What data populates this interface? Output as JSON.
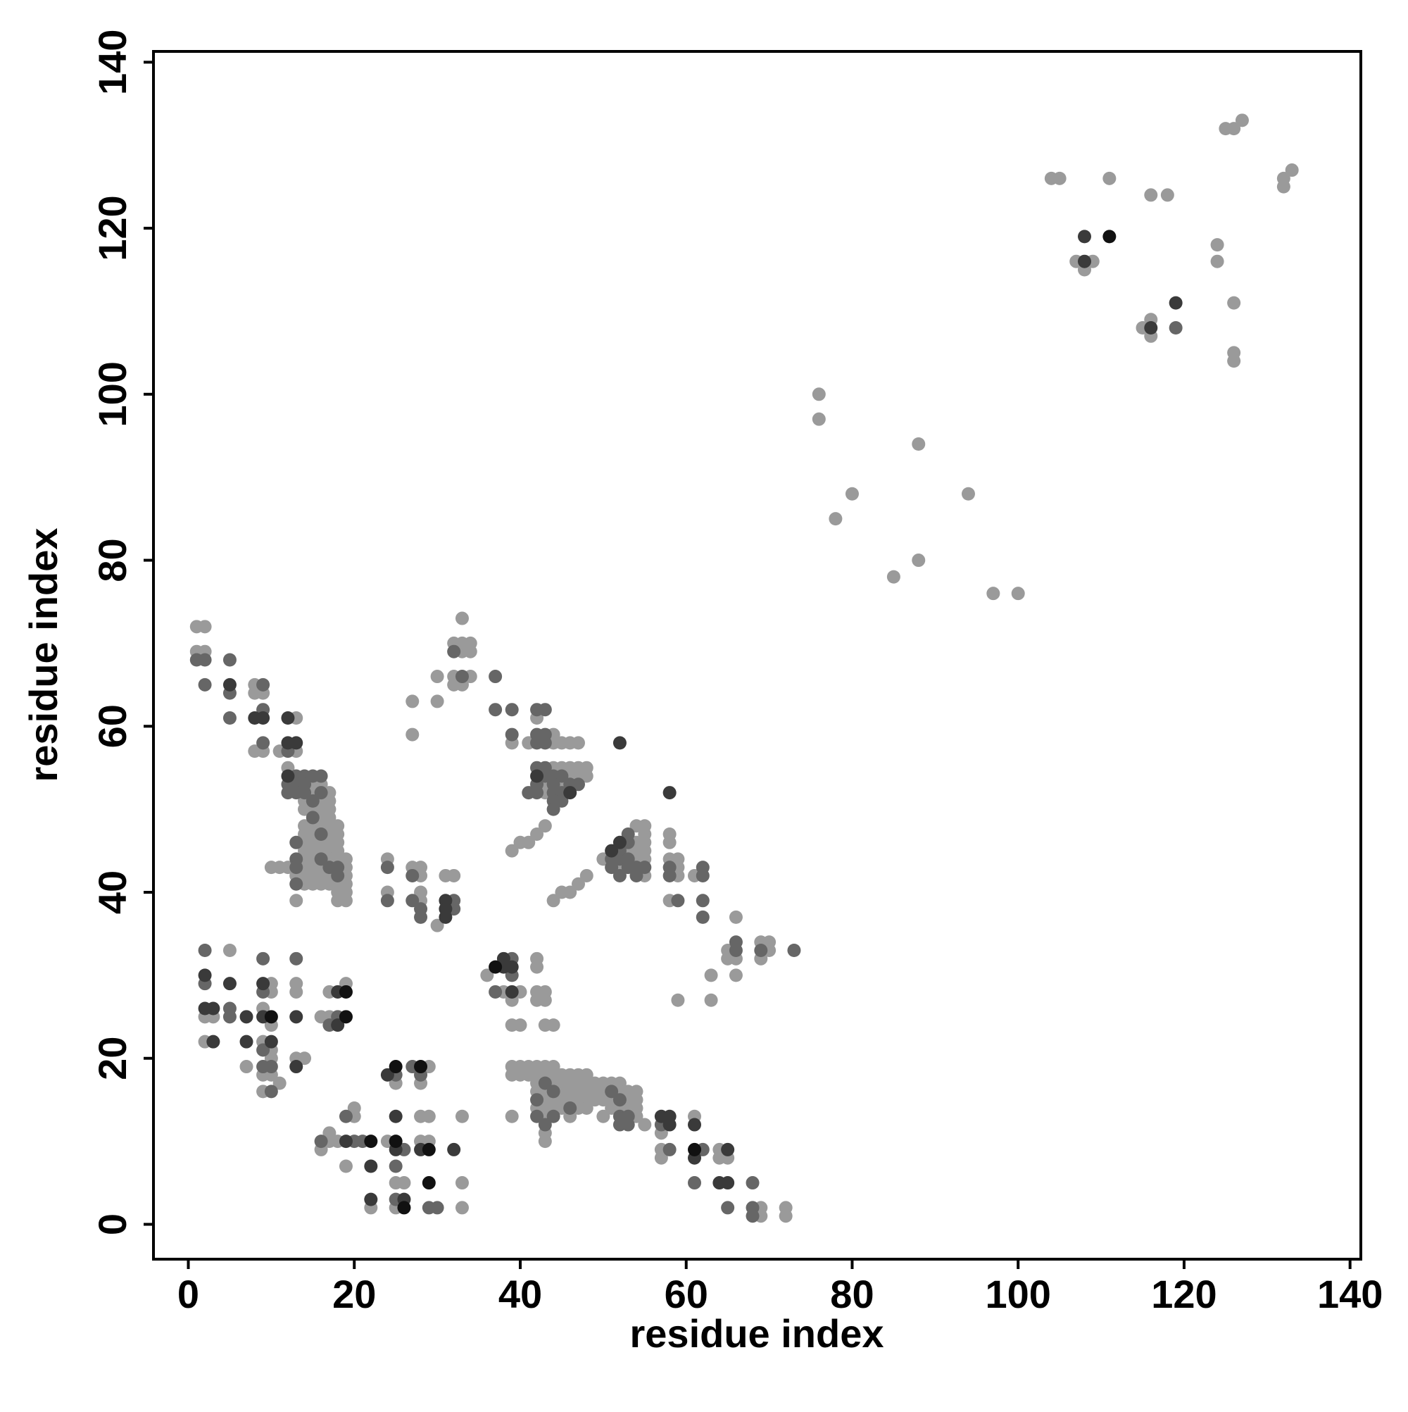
{
  "chart_data": {
    "type": "scatter",
    "xlabel": "residue index",
    "ylabel": "residue index",
    "xlim": [
      -4.2,
      141.3
    ],
    "ylim": [
      -4.2,
      141.3
    ],
    "xticks": [
      0,
      20,
      40,
      60,
      80,
      100,
      120,
      140
    ],
    "yticks": [
      0,
      20,
      40,
      60,
      80,
      100,
      120,
      140
    ],
    "series": [
      {
        "color": "#9a9a9a",
        "x": [
          104,
          105,
          111,
          116,
          118,
          127,
          126,
          125,
          133,
          132,
          132,
          107,
          109,
          108,
          124,
          124,
          126,
          115,
          116,
          116,
          126,
          126,
          76,
          76,
          88,
          80,
          94,
          78,
          88,
          85,
          97,
          100,
          1,
          2,
          1,
          2,
          8,
          8,
          9,
          8,
          9,
          13,
          11,
          13,
          12,
          15,
          16,
          15,
          17,
          14,
          16,
          17,
          14,
          15,
          16,
          17,
          16,
          17,
          14,
          15,
          16,
          17,
          18,
          14,
          15,
          17,
          18,
          14,
          15,
          16,
          17,
          18,
          14,
          15,
          16,
          17,
          18,
          14,
          15,
          17,
          18,
          19,
          10,
          11,
          12,
          14,
          15,
          16,
          19,
          13,
          14,
          15,
          16,
          17,
          19,
          14,
          15,
          16,
          17,
          18,
          19,
          18,
          19,
          13,
          18,
          19,
          33,
          32,
          33,
          34,
          33,
          34,
          30,
          32,
          34,
          32,
          33,
          27,
          30,
          27,
          24,
          27,
          28,
          28,
          31,
          32,
          24,
          28,
          28,
          30,
          42,
          39,
          41,
          44,
          44,
          45,
          46,
          47,
          44,
          45,
          46,
          47,
          48,
          46,
          47,
          48,
          43,
          45,
          43,
          43,
          42,
          41,
          40,
          39,
          48,
          47,
          46,
          45,
          44,
          55,
          54,
          55,
          54,
          55,
          53,
          54,
          55,
          50,
          54,
          55,
          52,
          55,
          58,
          58,
          58,
          59,
          59,
          59,
          61,
          58,
          66,
          65,
          65,
          66,
          69,
          70,
          70,
          69,
          63,
          66,
          59,
          63,
          5,
          10,
          13,
          19,
          10,
          13,
          17,
          9,
          16,
          17,
          2,
          3,
          10,
          2,
          9,
          10,
          10,
          13,
          14,
          7,
          9,
          10,
          11,
          9,
          29,
          25,
          28,
          20,
          20,
          28,
          29,
          33,
          17,
          17,
          18,
          24,
          28,
          29,
          16,
          19,
          25,
          26,
          33,
          22,
          25,
          33,
          42,
          42,
          36,
          38,
          40,
          42,
          43,
          39,
          42,
          43,
          39,
          40,
          43,
          44,
          39,
          40,
          41,
          42,
          43,
          44,
          39,
          40,
          41,
          42,
          43,
          44,
          45,
          46,
          47,
          48,
          42,
          44,
          45,
          46,
          47,
          48,
          49,
          50,
          51,
          52,
          42,
          43,
          45,
          46,
          47,
          48,
          49,
          50,
          52,
          53,
          54,
          43,
          44,
          45,
          46,
          47,
          48,
          49,
          50,
          51,
          53,
          54,
          42,
          43,
          44,
          45,
          47,
          48,
          51,
          52,
          53,
          54,
          39,
          43,
          46,
          50,
          54,
          55,
          43,
          43,
          61,
          57,
          57,
          57,
          64,
          64,
          65,
          69,
          72,
          69,
          72
        ],
        "values": [
          126,
          126,
          126,
          124,
          124,
          133,
          132,
          132,
          127,
          126,
          125,
          116,
          116,
          115,
          118,
          116,
          111,
          108,
          109,
          107,
          105,
          104,
          100,
          97,
          94,
          88,
          88,
          85,
          80,
          78,
          76,
          76,
          72,
          72,
          69,
          69,
          65,
          64,
          64,
          57,
          57,
          61,
          57,
          57,
          55,
          53,
          53,
          52,
          52,
          51,
          51,
          51,
          50,
          50,
          50,
          50,
          49,
          49,
          48,
          48,
          48,
          48,
          48,
          47,
          47,
          47,
          47,
          46,
          46,
          46,
          46,
          46,
          45,
          45,
          45,
          45,
          45,
          44,
          44,
          44,
          44,
          44,
          43,
          43,
          43,
          43,
          43,
          43,
          43,
          42,
          42,
          42,
          42,
          42,
          42,
          41,
          41,
          41,
          41,
          41,
          41,
          40,
          40,
          39,
          39,
          39,
          73,
          70,
          70,
          70,
          69,
          69,
          66,
          66,
          66,
          65,
          65,
          63,
          63,
          59,
          44,
          43,
          43,
          42,
          42,
          42,
          40,
          39,
          40,
          36,
          61,
          58,
          58,
          59,
          58,
          58,
          58,
          58,
          55,
          55,
          55,
          55,
          55,
          54,
          54,
          54,
          53,
          53,
          52,
          48,
          47,
          46,
          46,
          45,
          42,
          41,
          40,
          40,
          39,
          48,
          48,
          47,
          46,
          46,
          45,
          45,
          45,
          44,
          44,
          44,
          43,
          42,
          47,
          46,
          44,
          44,
          43,
          42,
          42,
          39,
          37,
          33,
          32,
          32,
          34,
          34,
          33,
          32,
          30,
          30,
          27,
          27,
          33,
          29,
          29,
          29,
          28,
          28,
          28,
          26,
          25,
          25,
          25,
          25,
          24,
          22,
          22,
          21,
          20,
          20,
          20,
          19,
          18,
          18,
          17,
          16,
          19,
          17,
          17,
          14,
          13,
          13,
          13,
          13,
          11,
          10,
          10,
          10,
          10,
          10,
          9,
          7,
          5,
          5,
          5,
          2,
          2,
          2,
          32,
          31,
          30,
          28,
          28,
          28,
          28,
          27,
          27,
          27,
          24,
          24,
          24,
          24,
          19,
          19,
          19,
          19,
          19,
          19,
          18,
          18,
          18,
          18,
          18,
          18,
          18,
          18,
          18,
          18,
          17,
          17,
          17,
          17,
          17,
          17,
          17,
          17,
          17,
          17,
          16,
          16,
          16,
          16,
          16,
          16,
          16,
          16,
          16,
          16,
          16,
          15,
          15,
          15,
          15,
          15,
          15,
          15,
          15,
          15,
          15,
          15,
          14,
          14,
          14,
          14,
          14,
          14,
          14,
          14,
          14,
          14,
          13,
          13,
          13,
          13,
          13,
          12,
          11,
          10,
          13,
          11,
          9,
          8,
          9,
          8,
          8,
          2,
          2,
          1,
          1
        ]
      },
      {
        "color": "#666666",
        "x": [
          119,
          1,
          2,
          2,
          5,
          5,
          5,
          9,
          9,
          9,
          12,
          13,
          14,
          15,
          16,
          12,
          13,
          14,
          12,
          13,
          14,
          16,
          15,
          15,
          16,
          13,
          13,
          16,
          13,
          17,
          18,
          18,
          13,
          32,
          33,
          24,
          27,
          24,
          27,
          28,
          28,
          32,
          32,
          37,
          37,
          39,
          42,
          43,
          39,
          42,
          43,
          42,
          43,
          42,
          43,
          43,
          44,
          45,
          42,
          44,
          46,
          47,
          41,
          42,
          44,
          45,
          44,
          45,
          44,
          53,
          53,
          52,
          51,
          52,
          53,
          51,
          53,
          54,
          55,
          52,
          54,
          58,
          58,
          62,
          62,
          59,
          62,
          62,
          66,
          66,
          69,
          73,
          2,
          9,
          13,
          2,
          9,
          5,
          18,
          5,
          17,
          9,
          9,
          10,
          10,
          27,
          25,
          28,
          19,
          16,
          20,
          21,
          26,
          25,
          25,
          29,
          30,
          39,
          39,
          37,
          43,
          44,
          51,
          42,
          52,
          46,
          42,
          44,
          52,
          53,
          43,
          52,
          53,
          57,
          58,
          62,
          61,
          68,
          65,
          68,
          68
        ],
        "values": [
          108,
          68,
          68,
          65,
          68,
          64,
          61,
          65,
          62,
          58,
          57,
          54,
          54,
          54,
          54,
          53,
          53,
          53,
          52,
          52,
          52,
          52,
          51,
          49,
          47,
          46,
          44,
          44,
          43,
          43,
          43,
          42,
          41,
          69,
          66,
          43,
          42,
          39,
          39,
          38,
          37,
          39,
          38,
          66,
          62,
          62,
          62,
          62,
          59,
          59,
          59,
          58,
          58,
          55,
          55,
          54,
          54,
          54,
          53,
          53,
          53,
          53,
          52,
          52,
          52,
          52,
          51,
          51,
          50,
          47,
          46,
          45,
          44,
          44,
          44,
          43,
          43,
          43,
          43,
          42,
          42,
          43,
          42,
          43,
          42,
          39,
          39,
          37,
          34,
          33,
          33,
          33,
          33,
          32,
          32,
          29,
          28,
          26,
          25,
          25,
          24,
          21,
          19,
          19,
          16,
          19,
          18,
          18,
          13,
          10,
          10,
          10,
          9,
          7,
          3,
          2,
          2,
          32,
          30,
          28,
          17,
          16,
          16,
          15,
          15,
          14,
          13,
          13,
          13,
          13,
          12,
          12,
          12,
          12,
          9,
          9,
          5,
          5,
          2,
          2,
          1
        ]
      },
      {
        "color": "#3a3a3a",
        "x": [
          108,
          108,
          119,
          116,
          5,
          8,
          9,
          12,
          12,
          13,
          12,
          31,
          31,
          31,
          42,
          46,
          52,
          58,
          52,
          51,
          2,
          5,
          9,
          18,
          2,
          3,
          7,
          9,
          13,
          18,
          3,
          7,
          10,
          13,
          24,
          25,
          19,
          25,
          28,
          32,
          22,
          22,
          26,
          38,
          39,
          38,
          39,
          57,
          58,
          58,
          61,
          61,
          65,
          64,
          65
        ],
        "values": [
          119,
          116,
          111,
          108,
          65,
          61,
          61,
          61,
          58,
          58,
          54,
          39,
          38,
          37,
          54,
          52,
          58,
          52,
          46,
          45,
          30,
          29,
          29,
          28,
          26,
          26,
          25,
          25,
          25,
          24,
          22,
          22,
          22,
          19,
          18,
          13,
          10,
          9,
          9,
          9,
          7,
          3,
          3,
          32,
          31,
          31,
          28,
          13,
          13,
          12,
          12,
          8,
          9,
          5,
          5
        ]
      },
      {
        "color": "#111111",
        "x": [
          111,
          19,
          19,
          10,
          25,
          28,
          22,
          25,
          29,
          29,
          26,
          37,
          61
        ],
        "values": [
          119,
          28,
          25,
          25,
          19,
          19,
          10,
          10,
          9,
          5,
          2,
          31,
          9
        ]
      }
    ]
  }
}
